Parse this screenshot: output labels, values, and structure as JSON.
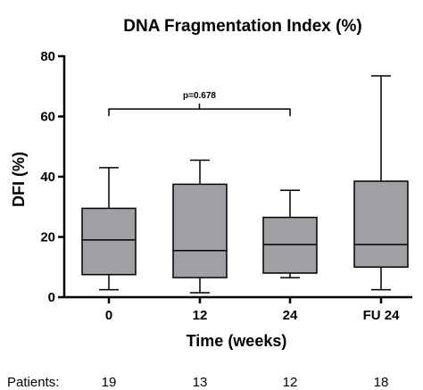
{
  "chart_data": {
    "type": "box",
    "title": "DNA Fragmentation Index (%)",
    "xlabel": "Time (weeks)",
    "ylabel": "DFI (%)",
    "ylim": [
      0,
      80
    ],
    "yticks": [
      0,
      20,
      40,
      60,
      80
    ],
    "categories": [
      "0",
      "12",
      "24",
      "FU 24"
    ],
    "boxes": [
      {
        "min": 2.5,
        "q1": 7.5,
        "median": 19,
        "q3": 29.5,
        "max": 43
      },
      {
        "min": 1.5,
        "q1": 6.5,
        "median": 15.5,
        "q3": 37.5,
        "max": 45.5
      },
      {
        "min": 6.5,
        "q1": 8,
        "median": 17.5,
        "q3": 26.5,
        "max": 35.5
      },
      {
        "min": 2.5,
        "q1": 10,
        "median": 17.5,
        "q3": 38.5,
        "max": 73.5
      }
    ],
    "box_color": "#a0a0a4",
    "annotation": {
      "text": "p=0.678",
      "from_category": 0,
      "to_category": 2,
      "y": 62.5
    },
    "patients_label": "Patients:",
    "patients": [
      "19",
      "13",
      "12",
      "18"
    ]
  }
}
